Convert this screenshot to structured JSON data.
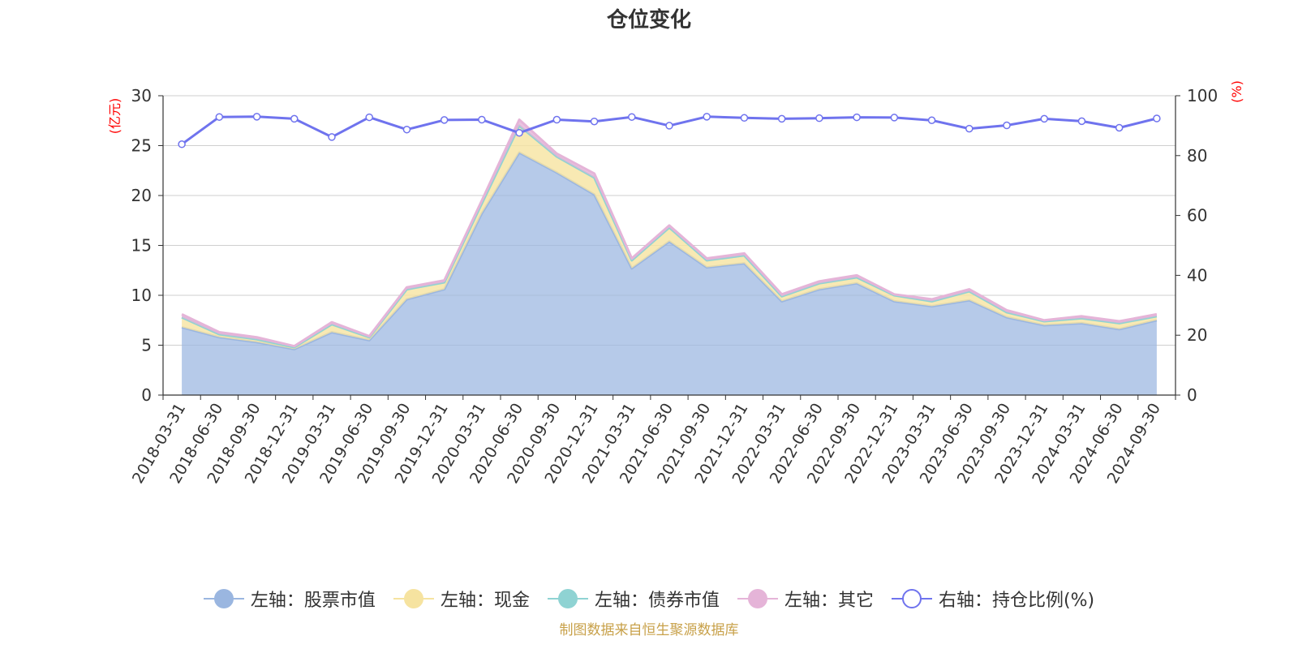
{
  "chart_data": {
    "type": "area",
    "title": "仓位变化",
    "left_axis_unit": "(亿元)",
    "right_axis_unit": "(%)",
    "left_ylim": [
      0,
      30
    ],
    "left_ticks": [
      0,
      5,
      10,
      15,
      20,
      25,
      30
    ],
    "right_ylim": [
      0,
      100
    ],
    "right_ticks": [
      0,
      20,
      40,
      60,
      80,
      100
    ],
    "categories": [
      "2018-03-31",
      "2018-06-30",
      "2018-09-30",
      "2018-12-31",
      "2019-03-31",
      "2019-06-30",
      "2019-09-30",
      "2019-12-31",
      "2020-03-31",
      "2020-06-30",
      "2020-09-30",
      "2020-12-31",
      "2021-03-31",
      "2021-06-30",
      "2021-09-30",
      "2021-12-31",
      "2022-03-31",
      "2022-06-30",
      "2022-09-30",
      "2022-12-31",
      "2023-03-31",
      "2023-06-30",
      "2023-09-30",
      "2023-12-31",
      "2024-03-31",
      "2024-06-30",
      "2024-09-30"
    ],
    "series": [
      {
        "name": "左轴：股票市值",
        "axis": "left",
        "color": "#9ab6e0",
        "values": [
          6.8,
          5.8,
          5.3,
          4.6,
          6.3,
          5.5,
          9.6,
          10.6,
          18.2,
          24.3,
          22.3,
          20.1,
          12.7,
          15.4,
          12.8,
          13.2,
          9.4,
          10.6,
          11.2,
          9.4,
          8.9,
          9.5,
          7.8,
          7.0,
          7.2,
          6.6,
          7.5
        ]
      },
      {
        "name": "左轴：现金",
        "axis": "left",
        "color": "#f6e3a0",
        "values": [
          1.0,
          0.3,
          0.3,
          0.2,
          0.8,
          0.3,
          1.0,
          0.7,
          1.0,
          2.7,
          1.6,
          1.7,
          0.8,
          1.4,
          0.7,
          0.8,
          0.5,
          0.6,
          0.6,
          0.6,
          0.5,
          0.9,
          0.5,
          0.4,
          0.5,
          0.6,
          0.4
        ]
      },
      {
        "name": "左轴：债券市值",
        "axis": "left",
        "color": "#8fd3d3",
        "values": [
          0,
          0,
          0,
          0,
          0,
          0,
          0,
          0,
          0,
          0,
          0,
          0,
          0,
          0,
          0,
          0,
          0,
          0,
          0,
          0,
          0,
          0,
          0,
          0,
          0,
          0,
          0
        ]
      },
      {
        "name": "左轴：其它",
        "axis": "left",
        "color": "#e5b4d8",
        "values": [
          0.3,
          0.2,
          0.2,
          0.1,
          0.2,
          0.1,
          0.2,
          0.2,
          0.3,
          0.6,
          0.3,
          0.4,
          0.2,
          0.2,
          0.2,
          0.2,
          0.2,
          0.2,
          0.2,
          0.1,
          0.2,
          0.2,
          0.2,
          0.1,
          0.2,
          0.2,
          0.2
        ]
      },
      {
        "name": "右轴：持仓比例(%)",
        "axis": "right",
        "color": "#6f73ee",
        "values": [
          83.8,
          92.9,
          93.0,
          92.3,
          86.2,
          92.8,
          88.7,
          91.9,
          92.0,
          87.6,
          92.0,
          91.4,
          92.9,
          90.0,
          93.0,
          92.6,
          92.3,
          92.5,
          92.8,
          92.7,
          91.8,
          89.0,
          90.1,
          92.3,
          91.5,
          89.3,
          92.4
        ]
      }
    ]
  },
  "source_text": "制图数据来自恒生聚源数据库"
}
